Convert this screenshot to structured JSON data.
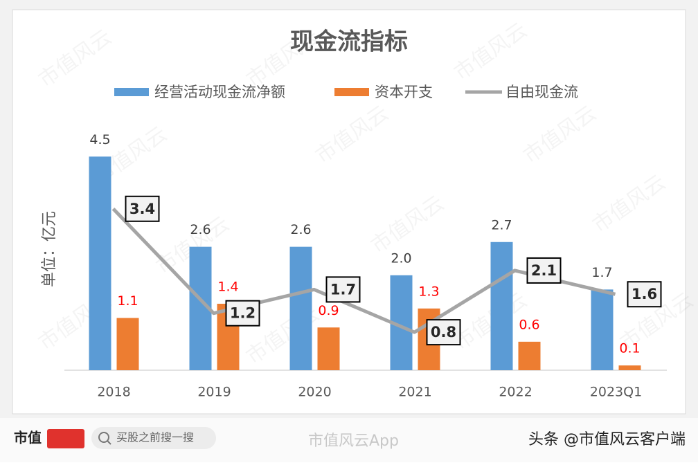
{
  "chart_data": {
    "type": "bar-line",
    "title": "现金流指标",
    "y_label": "单位：亿元",
    "categories": [
      "2018",
      "2019",
      "2020",
      "2021",
      "2022",
      "2023Q1"
    ],
    "ylim": [
      0,
      5
    ],
    "series": [
      {
        "name": "经营活动现金流净额",
        "kind": "bar",
        "color": "#5b9bd5",
        "label_color": "#404040",
        "values": [
          4.5,
          2.6,
          2.6,
          2.0,
          2.7,
          1.7
        ],
        "value_labels": [
          "4.5",
          "2.6",
          "2.6",
          "2.0",
          "2.7",
          "1.7"
        ]
      },
      {
        "name": "资本开支",
        "kind": "bar",
        "color": "#ed7d31",
        "label_color": "#ff0000",
        "values": [
          1.1,
          1.4,
          0.9,
          1.3,
          0.6,
          0.1
        ],
        "value_labels": [
          "1.1",
          "1.4",
          "0.9",
          "1.3",
          "0.6",
          "0.1"
        ]
      },
      {
        "name": "自由现金流",
        "kind": "line",
        "color": "#a5a5a5",
        "label_color": "#262626",
        "values": [
          3.4,
          1.2,
          1.7,
          0.8,
          2.1,
          1.6
        ],
        "value_labels": [
          "3.4",
          "1.2",
          "1.7",
          "0.8",
          "2.1",
          "1.6"
        ]
      }
    ]
  },
  "watermark": "市值风云",
  "footer": {
    "logo": "市值",
    "search": "买股之前搜一搜",
    "app": "市值风云App",
    "source": "头条 @市值风云客户端"
  }
}
